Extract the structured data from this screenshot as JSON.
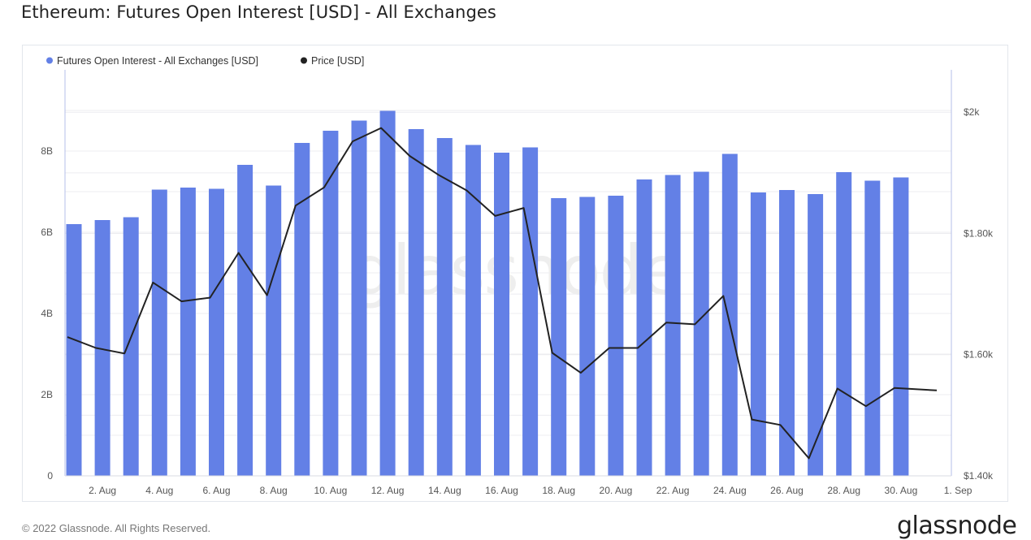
{
  "title": "Ethereum: Futures Open Interest [USD] - All Exchanges",
  "footer": {
    "copyright": "© 2022 Glassnode. All Rights Reserved.",
    "logo": "glassnode"
  },
  "watermark": "glassnode",
  "chart_data": {
    "type": "bar",
    "categories": [
      "1. Aug",
      "2. Aug",
      "3. Aug",
      "4. Aug",
      "5. Aug",
      "6. Aug",
      "7. Aug",
      "8. Aug",
      "9. Aug",
      "10. Aug",
      "11. Aug",
      "12. Aug",
      "13. Aug",
      "14. Aug",
      "15. Aug",
      "16. Aug",
      "17. Aug",
      "18. Aug",
      "19. Aug",
      "20. Aug",
      "21. Aug",
      "22. Aug",
      "23. Aug",
      "24. Aug",
      "25. Aug",
      "26. Aug",
      "27. Aug",
      "28. Aug",
      "29. Aug",
      "30. Aug",
      "31. Aug"
    ],
    "x_tick_labels": [
      "2. Aug",
      "4. Aug",
      "6. Aug",
      "8. Aug",
      "10. Aug",
      "12. Aug",
      "14. Aug",
      "16. Aug",
      "18. Aug",
      "20. Aug",
      "22. Aug",
      "24. Aug",
      "26. Aug",
      "28. Aug",
      "30. Aug",
      "1. Sep"
    ],
    "series": [
      {
        "name": "Futures Open Interest - All Exchanges [USD]",
        "type": "bar",
        "axis": "left",
        "color": "#6380e6",
        "values": [
          6.2,
          6.3,
          6.37,
          7.05,
          7.1,
          7.07,
          7.66,
          7.15,
          8.2,
          8.5,
          8.75,
          8.99,
          8.54,
          8.32,
          8.15,
          7.96,
          8.09,
          6.84,
          6.87,
          6.9,
          7.3,
          7.41,
          7.49,
          7.93,
          6.98,
          7.04,
          6.94,
          7.48,
          7.27,
          7.35,
          null
        ]
      },
      {
        "name": "Price [USD]",
        "type": "line",
        "axis": "right",
        "color": "#222222",
        "values": [
          1629,
          1611,
          1602,
          1719,
          1688,
          1694,
          1768,
          1698,
          1846,
          1876,
          1952,
          1974,
          1928,
          1897,
          1871,
          1829,
          1842,
          1603,
          1570,
          1611,
          1611,
          1653,
          1650,
          1697,
          1493,
          1484,
          1429,
          1544,
          1515,
          1545,
          1541
        ]
      }
    ],
    "y_left": {
      "ticks": [
        "0",
        "2B",
        "4B",
        "6B",
        "8B"
      ],
      "tick_values": [
        0,
        2,
        4,
        6,
        8
      ],
      "range": [
        0,
        10
      ],
      "unit": "billion USD"
    },
    "y_right": {
      "ticks": [
        "$1.40k",
        "$1.60k",
        "$1.80k",
        "$2k"
      ],
      "tick_values": [
        1400,
        1600,
        1800,
        2000
      ],
      "range": [
        1400,
        2070
      ]
    },
    "legend_position": "top-left",
    "grid": true
  }
}
